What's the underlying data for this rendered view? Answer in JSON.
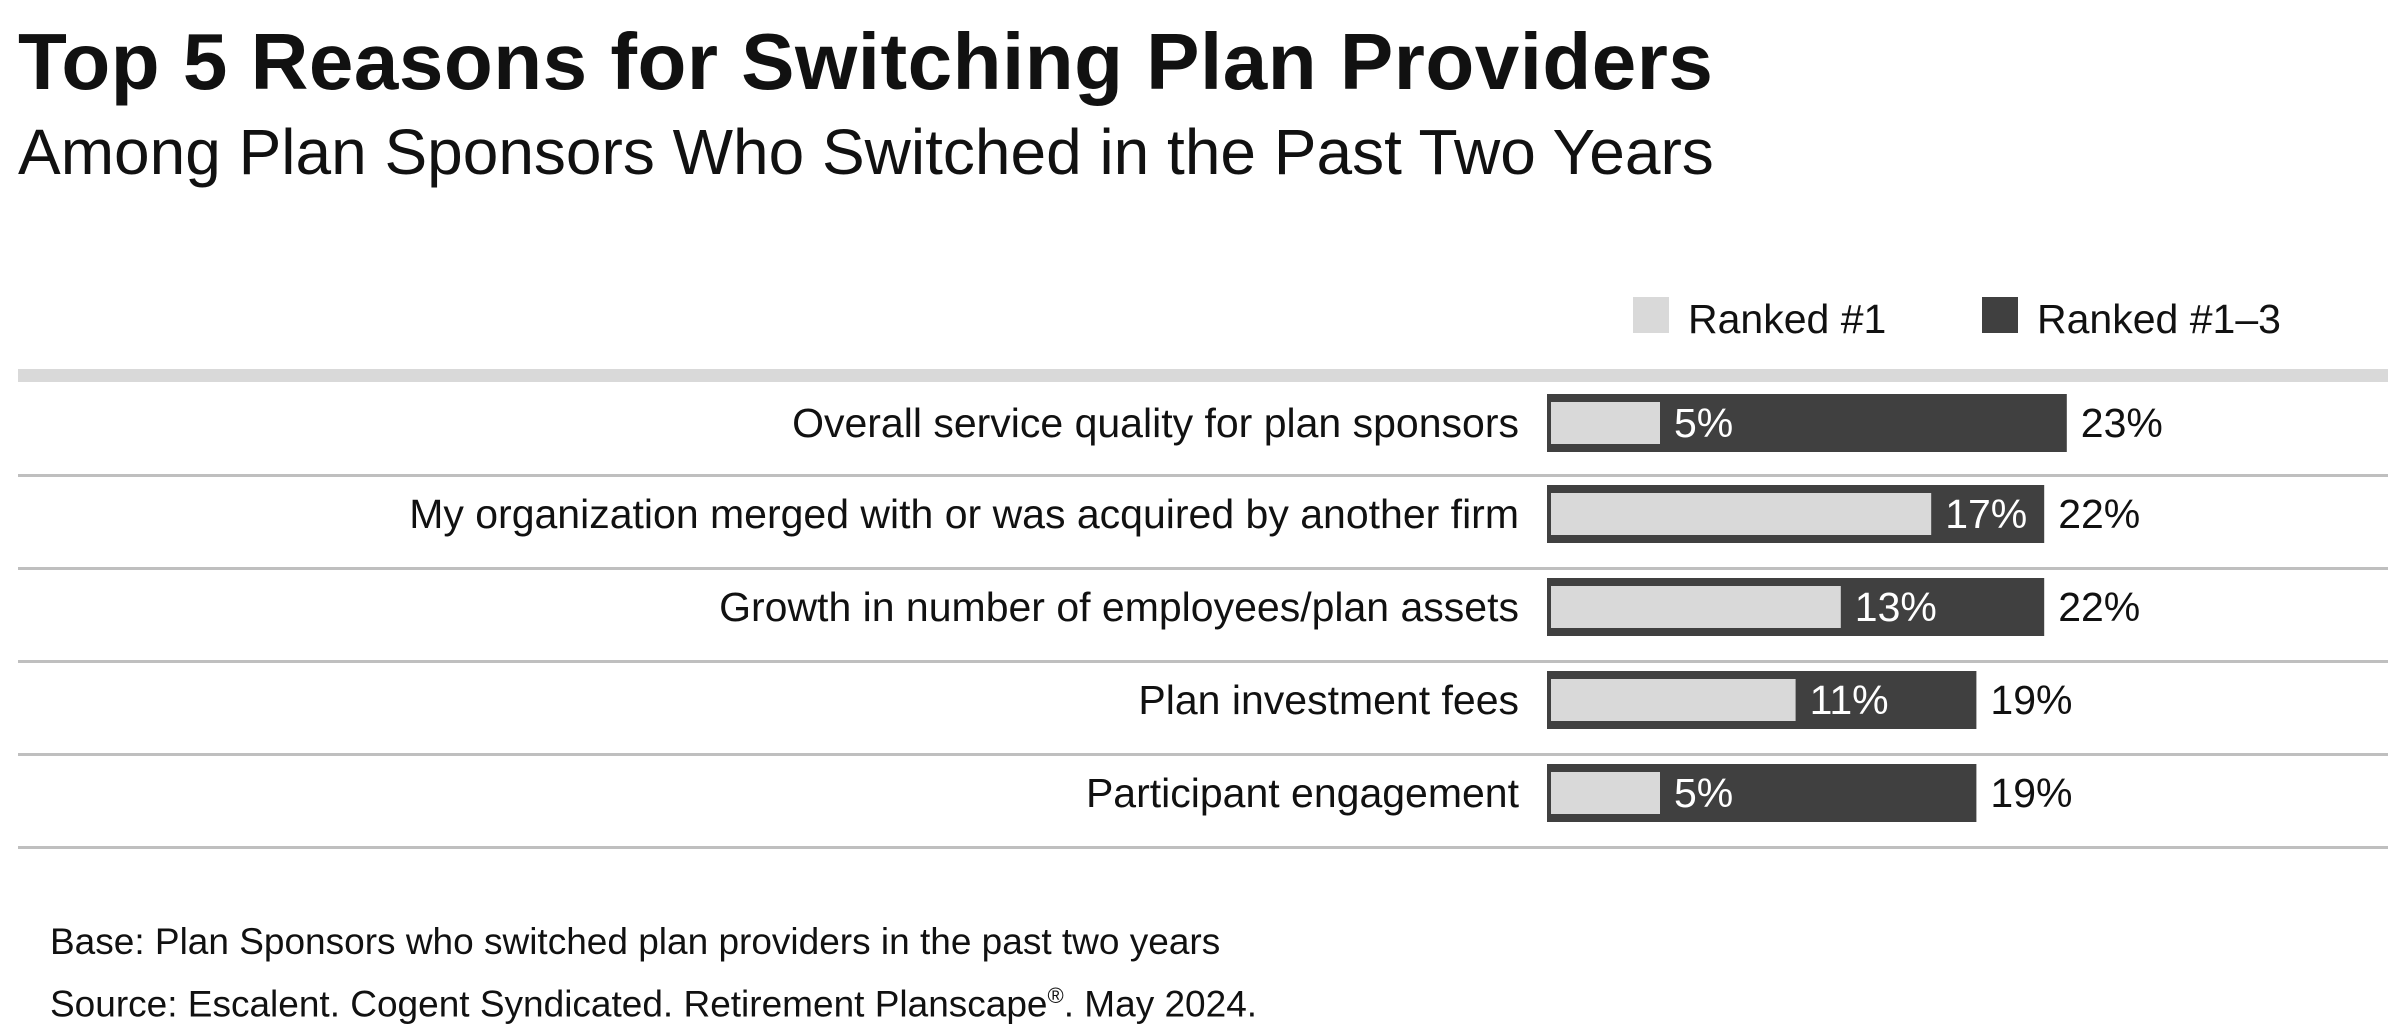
{
  "title": "Top 5 Reasons for Switching Plan Providers",
  "subtitle": "Among Plan Sponsors Who Switched in the Past Two Years",
  "footer": {
    "base": "Base: Plan Sponsors who switched plan providers in the past two years",
    "source_prefix": "Source: Escalent. Cogent Syndicated. Retirement Planscape",
    "source_reg": "®",
    "source_suffix": ". May 2024."
  },
  "colors": {
    "ranked_1": "#d9d9d9",
    "ranked_1_3": "#404040",
    "rule": "#d9d9d9",
    "row_divider": "#bfbfbf"
  },
  "chart_data": {
    "type": "bar",
    "orientation": "horizontal",
    "categories": [
      "Overall service quality for plan sponsors",
      "My organization merged with or was acquired by another firm",
      "Growth in number of employees/plan assets",
      "Plan investment fees",
      "Participant engagement"
    ],
    "series": [
      {
        "name": "Ranked #1",
        "values": [
          5,
          17,
          13,
          11,
          5
        ],
        "labels": [
          "5%",
          "17%",
          "13%",
          "11%",
          "5%"
        ]
      },
      {
        "name": "Ranked #1–3",
        "values": [
          23,
          22,
          22,
          19,
          19
        ],
        "labels": [
          "23%",
          "22%",
          "22%",
          "19%",
          "19%"
        ]
      }
    ],
    "unit": "%",
    "legend": "top-right",
    "grid": false
  }
}
